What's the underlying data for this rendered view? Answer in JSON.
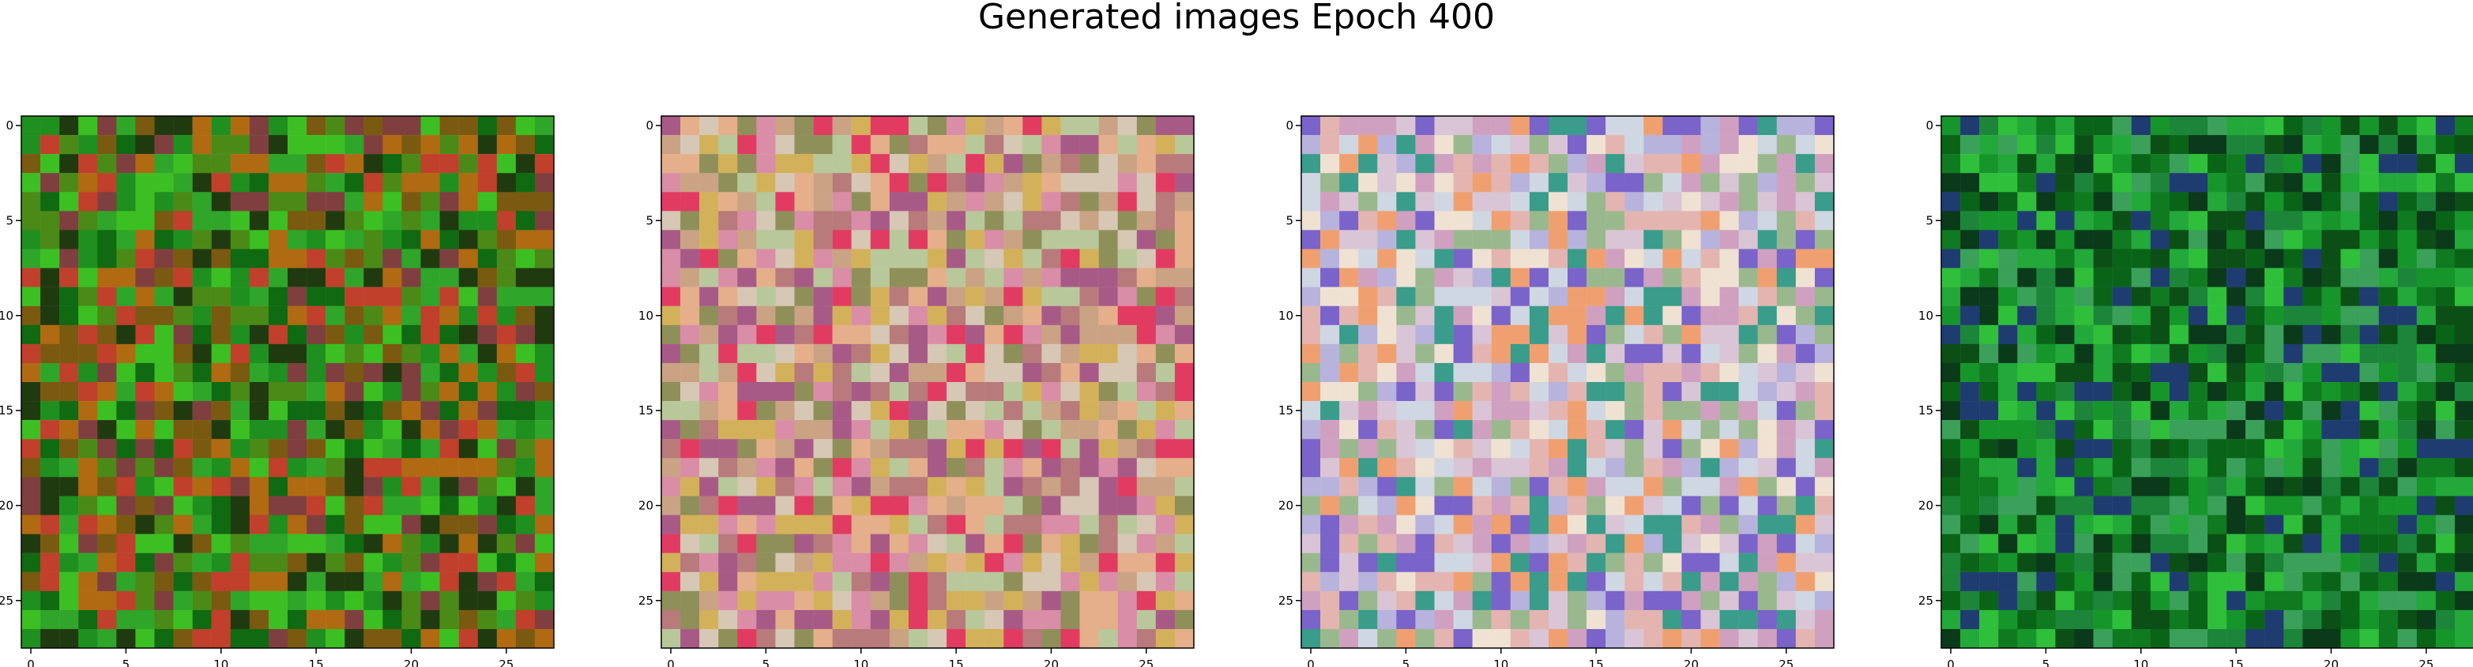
{
  "title": "Generated images Epoch 400",
  "image_grid_size": 28,
  "x_ticks": [
    "0",
    "5",
    "10",
    "15",
    "20",
    "25"
  ],
  "y_ticks": [
    "0",
    "5",
    "10",
    "15",
    "20",
    "25"
  ],
  "panels": [
    {
      "name": "generated-image-1",
      "palette": "green-brown",
      "colors": [
        "#1f8f1f",
        "#2fa52a",
        "#0f6a12",
        "#4b8a17",
        "#7a5a10",
        "#203a10",
        "#3cbf22",
        "#b06a12",
        "#c0402c",
        "#7f3f3f"
      ]
    },
    {
      "name": "generated-image-2",
      "palette": "pink-ochre",
      "colors": [
        "#d98da6",
        "#c9a384",
        "#b87a7a",
        "#d3b15a",
        "#a85a87",
        "#d7c7b5",
        "#e4af8a",
        "#8f8f5a",
        "#e23b62",
        "#b8c89a"
      ]
    },
    {
      "name": "generated-image-3",
      "palette": "pastel",
      "colors": [
        "#d9c5d5",
        "#b7b3dc",
        "#e4b5b0",
        "#cfd7e2",
        "#9ab88e",
        "#d0a0c0",
        "#efe2d2",
        "#7a63c9",
        "#3a9c8a",
        "#f0a070"
      ]
    },
    {
      "name": "generated-image-4",
      "palette": "green",
      "colors": [
        "#0f7a20",
        "#16952b",
        "#0a6418",
        "#23a83a",
        "#0b4f16",
        "#2fbf3a",
        "#1c853a",
        "#0a3a1a",
        "#1f3c70",
        "#3aa05a"
      ]
    }
  ]
}
